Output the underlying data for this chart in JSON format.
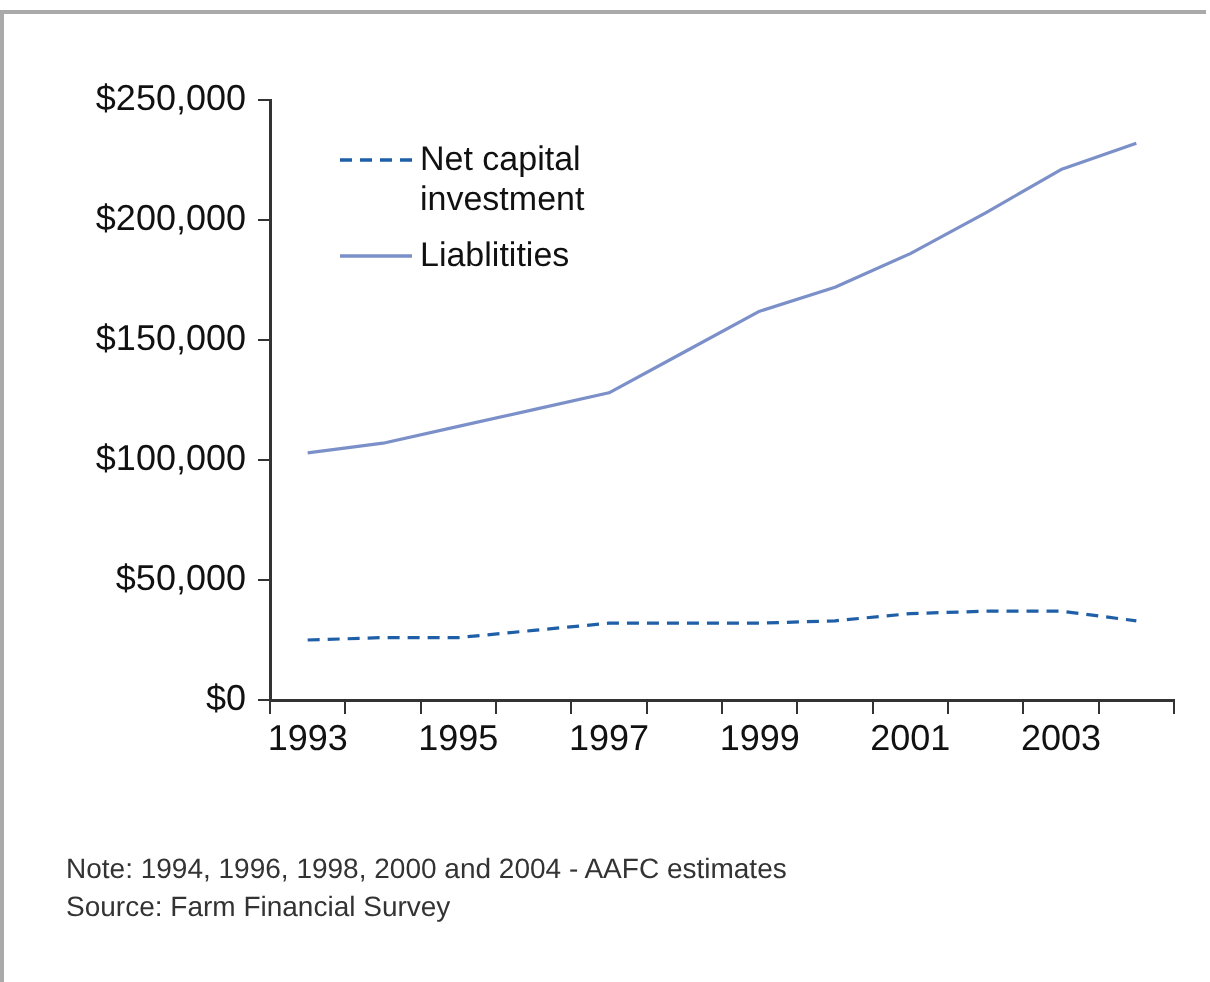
{
  "chart_data": {
    "type": "line",
    "categories": [
      "1993",
      null,
      "1995",
      null,
      "1997",
      null,
      "1999",
      null,
      "2001",
      null,
      "2003",
      null
    ],
    "series": [
      {
        "name": "Net capital investment",
        "color": "#1f5fa8",
        "line_style": "dashed",
        "values": [
          25000,
          26000,
          26000,
          29000,
          32000,
          32000,
          32000,
          33000,
          36000,
          37000,
          37000,
          33000
        ]
      },
      {
        "name": "Liablitities",
        "color": "#7b8fc9",
        "line_style": "solid",
        "values": [
          103000,
          107000,
          114000,
          121000,
          128000,
          145000,
          162000,
          172000,
          186000,
          203000,
          221000,
          232000
        ]
      }
    ],
    "ylim": [
      0,
      250000
    ],
    "yticks": [
      {
        "value": 0,
        "label": "$0"
      },
      {
        "value": 50000,
        "label": "$50,000"
      },
      {
        "value": 100000,
        "label": "$100,000"
      },
      {
        "value": 150000,
        "label": "$150,000"
      },
      {
        "value": 200000,
        "label": "$200,000"
      },
      {
        "value": 250000,
        "label": "$250,000"
      }
    ],
    "grid": false,
    "legend": "top left",
    "marker": "none",
    "annotations": [
      "Note: 1994, 1996, 1998, 2000 and 2004 - AAFC estimates",
      "Source: Farm Financial Survey"
    ]
  }
}
